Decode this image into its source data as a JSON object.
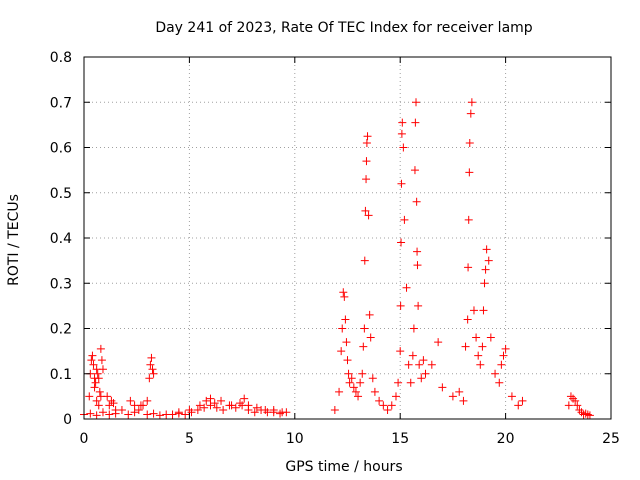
{
  "chart_data": {
    "type": "scatter",
    "title": "Day 241 of 2023, Rate Of TEC Index for receiver lamp",
    "xlabel": "GPS time / hours",
    "ylabel": "ROTI / TECUs",
    "xlim": [
      0,
      25
    ],
    "ylim": [
      0,
      0.8
    ],
    "x_ticks": [
      "0",
      "5",
      "10",
      "15",
      "20",
      "25"
    ],
    "y_ticks": [
      "0",
      "0.1",
      "0.2",
      "0.3",
      "0.4",
      "0.5",
      "0.6",
      "0.7",
      "0.8"
    ],
    "grid": true,
    "marker": "plus",
    "color": "#ff0000",
    "series": [
      {
        "x": [
          0.0,
          0.3,
          0.6,
          0.9,
          1.2,
          1.5,
          1.8,
          2.1,
          2.4,
          2.7,
          3.0,
          3.3,
          3.6,
          3.9,
          4.2,
          4.5,
          4.8,
          5.1,
          5.4,
          5.7,
          6.0,
          6.3,
          6.6,
          6.9,
          7.2,
          7.5,
          7.8,
          8.1,
          8.4,
          8.7,
          9.0,
          9.3,
          9.6,
          0.25,
          0.3,
          0.35,
          0.4,
          0.45,
          0.5,
          0.55,
          0.6,
          0.65,
          0.7,
          0.75,
          0.8,
          0.85,
          0.9,
          0.5,
          0.6,
          0.7,
          0.8,
          1.1,
          1.2,
          1.3,
          1.4,
          1.5,
          2.2,
          2.4,
          2.6,
          2.8,
          3.0,
          3.1,
          3.15,
          3.2,
          3.25,
          3.3,
          4.5,
          5.0,
          5.5,
          5.8,
          6.0,
          6.2,
          6.5,
          7.0,
          7.4,
          7.6,
          7.8,
          8.2,
          8.6,
          9.0,
          9.4,
          11.9,
          12.1,
          12.2,
          12.25,
          12.3,
          12.35,
          12.4,
          12.45,
          12.5,
          12.55,
          12.6,
          12.7,
          12.8,
          12.9,
          13.0,
          13.1,
          13.2,
          13.25,
          13.3,
          13.32,
          13.35,
          13.38,
          13.4,
          13.42,
          13.45,
          13.5,
          13.55,
          13.6,
          13.7,
          13.8,
          14.0,
          14.2,
          14.4,
          14.6,
          14.8,
          14.9,
          15.0,
          15.02,
          15.04,
          15.06,
          15.08,
          15.1,
          15.15,
          15.2,
          15.3,
          15.4,
          15.5,
          15.6,
          15.65,
          15.7,
          15.72,
          15.75,
          15.78,
          15.8,
          15.82,
          15.85,
          15.9,
          16.0,
          16.1,
          16.2,
          16.5,
          16.8,
          17.0,
          17.5,
          17.8,
          18.0,
          18.1,
          18.2,
          18.22,
          18.25,
          18.28,
          18.3,
          18.35,
          18.4,
          18.5,
          18.6,
          18.7,
          18.8,
          18.9,
          18.95,
          19.0,
          19.05,
          19.1,
          19.2,
          19.3,
          19.5,
          19.7,
          19.8,
          19.9,
          20.0,
          20.3,
          20.6,
          20.8,
          23.0,
          23.1,
          23.2,
          23.3,
          23.4,
          23.5,
          23.6,
          23.7,
          23.8,
          23.9,
          24.0
        ],
        "y": [
          0.01,
          0.012,
          0.008,
          0.015,
          0.01,
          0.012,
          0.02,
          0.01,
          0.015,
          0.03,
          0.01,
          0.012,
          0.008,
          0.01,
          0.01,
          0.012,
          0.01,
          0.015,
          0.02,
          0.025,
          0.03,
          0.025,
          0.02,
          0.03,
          0.025,
          0.03,
          0.02,
          0.015,
          0.02,
          0.015,
          0.015,
          0.012,
          0.015,
          0.05,
          0.1,
          0.13,
          0.14,
          0.12,
          0.09,
          0.08,
          0.11,
          0.1,
          0.09,
          0.06,
          0.155,
          0.13,
          0.11,
          0.07,
          0.04,
          0.03,
          0.05,
          0.05,
          0.03,
          0.04,
          0.035,
          0.02,
          0.04,
          0.03,
          0.02,
          0.03,
          0.04,
          0.09,
          0.12,
          0.135,
          0.11,
          0.1,
          0.015,
          0.02,
          0.03,
          0.04,
          0.045,
          0.035,
          0.04,
          0.03,
          0.035,
          0.045,
          0.03,
          0.025,
          0.02,
          0.02,
          0.015,
          0.02,
          0.06,
          0.15,
          0.2,
          0.28,
          0.27,
          0.22,
          0.17,
          0.13,
          0.1,
          0.08,
          0.09,
          0.07,
          0.06,
          0.05,
          0.08,
          0.1,
          0.16,
          0.2,
          0.35,
          0.46,
          0.53,
          0.57,
          0.61,
          0.625,
          0.45,
          0.23,
          0.18,
          0.09,
          0.06,
          0.04,
          0.03,
          0.02,
          0.03,
          0.05,
          0.08,
          0.15,
          0.25,
          0.39,
          0.52,
          0.63,
          0.655,
          0.6,
          0.44,
          0.29,
          0.12,
          0.08,
          0.14,
          0.2,
          0.55,
          0.655,
          0.7,
          0.48,
          0.37,
          0.34,
          0.25,
          0.12,
          0.09,
          0.13,
          0.1,
          0.12,
          0.17,
          0.07,
          0.05,
          0.06,
          0.04,
          0.16,
          0.22,
          0.335,
          0.44,
          0.545,
          0.61,
          0.675,
          0.7,
          0.24,
          0.18,
          0.14,
          0.12,
          0.16,
          0.24,
          0.3,
          0.33,
          0.375,
          0.35,
          0.18,
          0.1,
          0.08,
          0.12,
          0.14,
          0.155,
          0.05,
          0.03,
          0.04,
          0.03,
          0.05,
          0.045,
          0.04,
          0.03,
          0.02,
          0.015,
          0.01,
          0.012,
          0.01,
          0.008
        ]
      }
    ]
  }
}
